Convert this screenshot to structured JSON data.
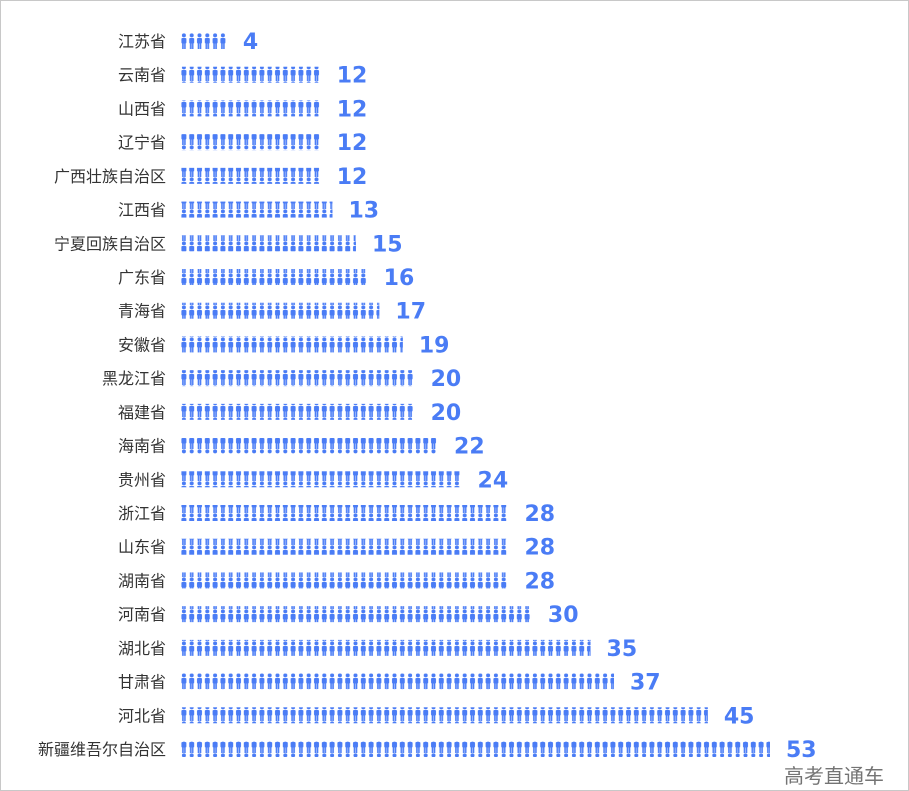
{
  "chart_data": {
    "type": "bar",
    "orientation": "horizontal",
    "style": "pictorial person-icon bars",
    "bar_color": "#4a7cf5",
    "label_color": "#4a7cf5",
    "grid": false,
    "categories": [
      "江苏省",
      "云南省",
      "山西省",
      "辽宁省",
      "广西壮族自治区",
      "江西省",
      "宁夏回族自治区",
      "广东省",
      "青海省",
      "安徽省",
      "黑龙江省",
      "福建省",
      "海南省",
      "贵州省",
      "浙江省",
      "山东省",
      "湖南省",
      "河南省",
      "湖北省",
      "甘肃省",
      "河北省",
      "新疆维吾尔自治区"
    ],
    "values": [
      4,
      12,
      12,
      12,
      12,
      13,
      15,
      16,
      17,
      19,
      20,
      20,
      22,
      24,
      28,
      28,
      28,
      30,
      35,
      37,
      45,
      53
    ]
  },
  "watermark": "高考直通车"
}
